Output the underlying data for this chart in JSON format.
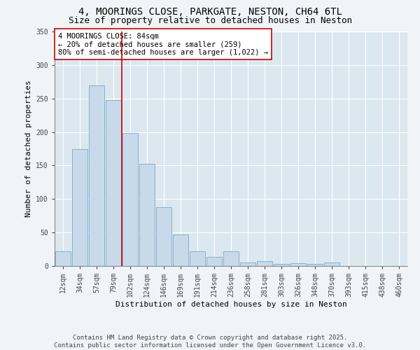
{
  "title_line1": "4, MOORINGS CLOSE, PARKGATE, NESTON, CH64 6TL",
  "title_line2": "Size of property relative to detached houses in Neston",
  "xlabel": "Distribution of detached houses by size in Neston",
  "ylabel": "Number of detached properties",
  "bar_color": "#c8daea",
  "bar_edge_color": "#7aaac8",
  "bg_color": "#dce8f0",
  "grid_color": "#ffffff",
  "fig_bg_color": "#f0f4f8",
  "vline_color": "#cc0000",
  "annotation_text": "4 MOORINGS CLOSE: 84sqm\n← 20% of detached houses are smaller (259)\n80% of semi-detached houses are larger (1,022) →",
  "annotation_box_color": "#ffffff",
  "annotation_box_edge": "#cc0000",
  "categories": [
    "12sqm",
    "34sqm",
    "57sqm",
    "79sqm",
    "102sqm",
    "124sqm",
    "146sqm",
    "169sqm",
    "191sqm",
    "214sqm",
    "236sqm",
    "258sqm",
    "281sqm",
    "303sqm",
    "326sqm",
    "348sqm",
    "370sqm",
    "393sqm",
    "415sqm",
    "438sqm",
    "460sqm"
  ],
  "values": [
    22,
    175,
    270,
    248,
    199,
    153,
    88,
    47,
    22,
    14,
    22,
    5,
    7,
    3,
    4,
    3,
    5,
    0,
    0,
    0,
    0
  ],
  "ylim": [
    0,
    350
  ],
  "yticks": [
    0,
    50,
    100,
    150,
    200,
    250,
    300,
    350
  ],
  "footer": "Contains HM Land Registry data © Crown copyright and database right 2025.\nContains public sector information licensed under the Open Government Licence v3.0.",
  "title_fontsize": 10,
  "subtitle_fontsize": 9,
  "axis_label_fontsize": 8,
  "tick_fontsize": 7,
  "annotation_fontsize": 7.5,
  "footer_fontsize": 6.5
}
